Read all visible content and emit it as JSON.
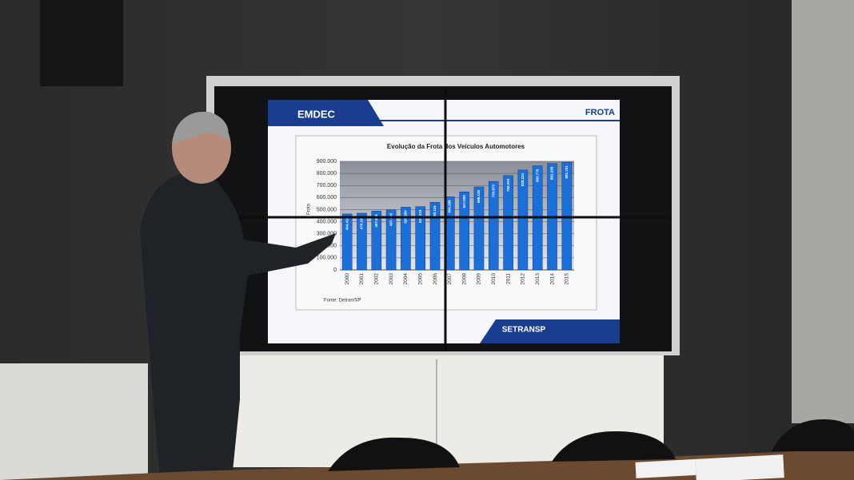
{
  "header": {
    "logo": "EMDEC",
    "section": "FROTA"
  },
  "footer": {
    "logo": "SETRANSP"
  },
  "chart_data": {
    "type": "bar",
    "title": "Evolução da Frota dos Veículos Automotores",
    "y_label": "Frota",
    "source": "Fonte:  Detran/SP",
    "categories": [
      "2000",
      "2001",
      "2002",
      "2003",
      "2004",
      "2005",
      "2006",
      "2007",
      "2008",
      "2009",
      "2010",
      "2011",
      "2012",
      "2013",
      "2014",
      "2015"
    ],
    "values": [
      464416,
      470102,
      487668,
      497493,
      520284,
      524419,
      560116,
      606288,
      647060,
      688136,
      733973,
      782263,
      828224,
      862776,
      881238,
      891721
    ],
    "value_labels": [
      "464.416",
      "470.102",
      "487.668",
      "497.493",
      "520.284",
      "524.419",
      "560.116",
      "606.288",
      "647.060",
      "688.136",
      "733.973",
      "782.263",
      "828.224",
      "862.776",
      "881.238",
      "891.721"
    ],
    "color": "#1a6fd8",
    "ylim": [
      0,
      900000
    ],
    "yticks": [
      0,
      {
        "value": 100000,
        "label": "100.000"
      },
      {
        "value": 200000,
        "label": "200.000"
      },
      {
        "value": 300000,
        "label": "300.000"
      },
      {
        "value": 400000,
        "label": "400.000"
      },
      {
        "value": 500000,
        "label": "500.000"
      },
      {
        "value": 600000,
        "label": "600.000"
      },
      {
        "value": 700000,
        "label": "700.000"
      },
      {
        "value": 800000,
        "label": "800.000"
      },
      {
        "value": 900000,
        "label": "900.000"
      }
    ],
    "grid": true
  }
}
